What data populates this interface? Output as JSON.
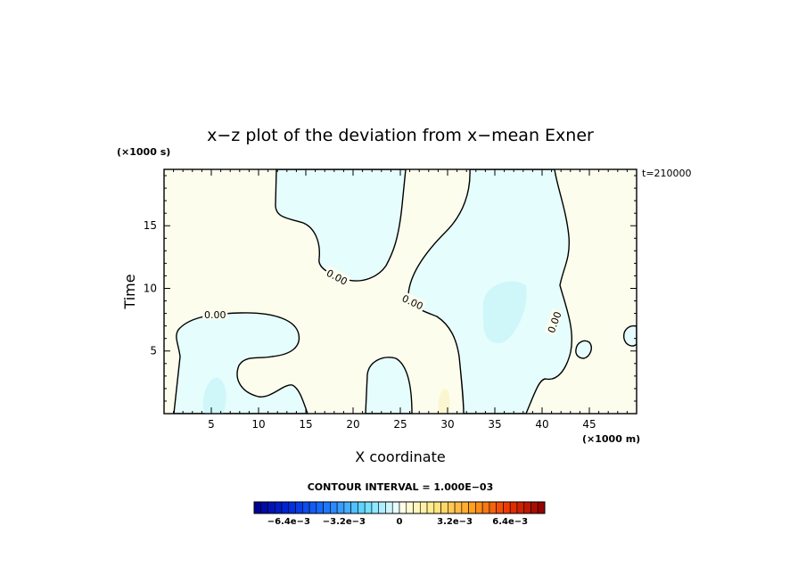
{
  "chart_data": {
    "type": "heatmap",
    "title": "x−z plot of the deviation from x−mean Exner",
    "xlabel": "X coordinate",
    "ylabel": "Time",
    "x_unit": "(×1000 m)",
    "y_unit": "(×1000 s)",
    "time_label": "t=210000",
    "xlim": [
      0,
      50
    ],
    "ylim": [
      0,
      19.5
    ],
    "x_ticks": [
      5,
      10,
      15,
      20,
      25,
      30,
      35,
      40,
      45
    ],
    "y_ticks": [
      5,
      10,
      15
    ],
    "contour_level": 0.0,
    "contour_labels": [
      {
        "text": "0.00",
        "x": 5.4,
        "y": 7.9,
        "angle": 0
      },
      {
        "text": "0.00",
        "x": 18.3,
        "y": 10.9,
        "angle": 28
      },
      {
        "text": "0.00",
        "x": 26.3,
        "y": 8.9,
        "angle": 25
      },
      {
        "text": "0.00",
        "x": 41.3,
        "y": 7.3,
        "angle": -70
      }
    ],
    "contour_interval_text": "CONTOUR INTERVAL = 1.000E−03",
    "colorbar": {
      "range": [
        -0.0084,
        0.0084
      ],
      "n_bins": 42,
      "labels": [
        "−6.4e−3",
        "−3.2e−3",
        "0",
        "3.2e−3",
        "6.4e−3"
      ],
      "label_values": [
        -0.0064,
        -0.0032,
        0,
        0.0032,
        0.0064
      ]
    },
    "fields": {
      "positive_color": "#fdfdee",
      "negative_color": "#e6fdfd",
      "strong_negative_color": "#cff7fa",
      "strong_positive_color": "#fbf6cf"
    }
  }
}
